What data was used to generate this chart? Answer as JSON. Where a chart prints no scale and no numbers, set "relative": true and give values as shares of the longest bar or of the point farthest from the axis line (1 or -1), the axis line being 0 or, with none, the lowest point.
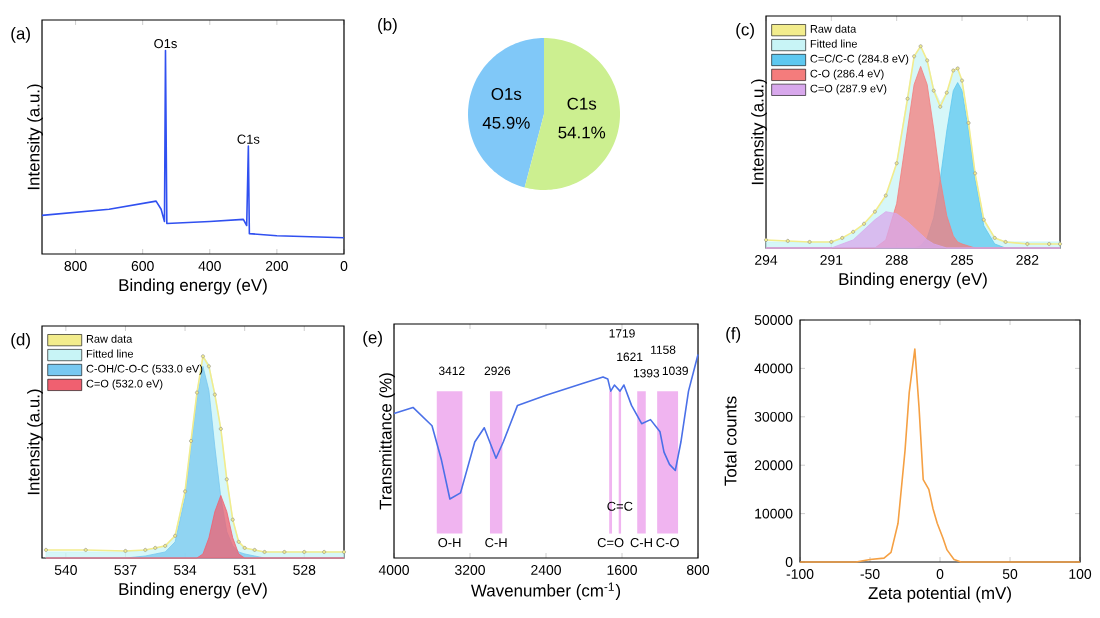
{
  "chart_data": [
    {
      "type": "line",
      "title": "(a)",
      "xlabel": "Binding energy (eV)",
      "ylabel": "Intensity (a.u.)",
      "relative": true,
      "xlim": [
        900,
        0
      ],
      "xticks": [
        800,
        600,
        400,
        200,
        0
      ],
      "color": "#3050f0",
      "x": [
        900,
        700,
        560,
        545,
        535,
        532,
        528,
        400,
        300,
        290,
        285,
        282,
        200,
        0
      ],
      "values": [
        0.19,
        0.22,
        0.26,
        0.22,
        0.16,
        1,
        0.15,
        0.16,
        0.17,
        0.14,
        0.53,
        0.1,
        0.09,
        0.08
      ],
      "annotations": [
        {
          "text": "O1s",
          "x": 532,
          "y": 1
        },
        {
          "text": "C1s",
          "x": 285,
          "y": 0.53
        }
      ]
    },
    {
      "type": "pie",
      "title": "(b)",
      "categories": [
        "O1s",
        "C1s"
      ],
      "values": [
        45.9,
        54.1
      ],
      "colors": [
        "#80c8f8",
        "#ccef90"
      ],
      "value_labels": [
        "45.9%",
        "54.1%"
      ]
    },
    {
      "type": "area",
      "title": "(c)",
      "xlabel": "Binding energy (eV)",
      "ylabel": "Intensity (a.u.)",
      "relative": true,
      "xlim": [
        294,
        280.5
      ],
      "xticks": [
        294,
        291,
        288,
        285,
        282
      ],
      "legend": "top left",
      "x": [
        294,
        293,
        292,
        291,
        290.5,
        290,
        289.5,
        289,
        288.5,
        288,
        287.5,
        287.2,
        286.9,
        286.6,
        286.3,
        286,
        285.7,
        285.4,
        285.2,
        285,
        284.7,
        284.4,
        284,
        283.5,
        283,
        282,
        281,
        280.5
      ],
      "series": [
        {
          "name": "Raw data",
          "type": "line",
          "marker": "circle",
          "color": "#f2ec8c",
          "values": [
            0.04,
            0.035,
            0.03,
            0.03,
            0.05,
            0.08,
            0.12,
            0.18,
            0.26,
            0.42,
            0.74,
            0.95,
            1,
            0.93,
            0.78,
            0.7,
            0.77,
            0.88,
            0.89,
            0.83,
            0.62,
            0.37,
            0.14,
            0.05,
            0.03,
            0.02,
            0.02,
            0.02
          ]
        },
        {
          "name": "Fitted line",
          "color": "#c8f4f6",
          "values": [
            0.03,
            0.03,
            0.03,
            0.03,
            0.05,
            0.07,
            0.12,
            0.17,
            0.25,
            0.42,
            0.75,
            0.94,
            1,
            0.93,
            0.79,
            0.72,
            0.77,
            0.87,
            0.88,
            0.83,
            0.62,
            0.37,
            0.14,
            0.05,
            0.03,
            0.03,
            0.03,
            0.03
          ]
        },
        {
          "name": "C=C/C-C (284.8 eV)",
          "color": "#5ec8f0",
          "values": [
            0,
            0,
            0,
            0,
            0,
            0,
            0,
            0,
            0,
            0,
            0,
            0,
            0.01,
            0.05,
            0.15,
            0.34,
            0.58,
            0.78,
            0.82,
            0.78,
            0.58,
            0.34,
            0.11,
            0.02,
            0,
            0,
            0,
            0
          ]
        },
        {
          "name": "C-O (286.4 eV)",
          "color": "#f47c7c",
          "values": [
            0,
            0,
            0,
            0,
            0,
            0,
            0,
            0,
            0.04,
            0.22,
            0.59,
            0.81,
            0.9,
            0.81,
            0.59,
            0.34,
            0.16,
            0.06,
            0.03,
            0.02,
            0.01,
            0,
            0,
            0,
            0,
            0,
            0,
            0
          ]
        },
        {
          "name": "C=O (287.9 eV)",
          "color": "#d8a8ec",
          "values": [
            0,
            0,
            0,
            0,
            0.02,
            0.04,
            0.09,
            0.14,
            0.18,
            0.17,
            0.13,
            0.1,
            0.07,
            0.04,
            0.02,
            0.01,
            0,
            0,
            0,
            0,
            0,
            0,
            0,
            0,
            0,
            0,
            0,
            0
          ]
        }
      ]
    },
    {
      "type": "area",
      "title": "(d)",
      "xlabel": "Binding energy (eV)",
      "ylabel": "Intensity (a.u.)",
      "relative": true,
      "xlim": [
        541.2,
        526
      ],
      "xticks": [
        540,
        537,
        534,
        531,
        528
      ],
      "legend": "top left",
      "x": [
        541,
        539,
        537,
        536,
        535.5,
        535,
        534.5,
        534,
        533.7,
        533.4,
        533.1,
        532.8,
        532.5,
        532.2,
        531.9,
        531.6,
        531.3,
        531,
        530.5,
        530,
        529,
        528,
        527,
        526
      ],
      "series": [
        {
          "name": "Raw data",
          "type": "line",
          "marker": "circle",
          "color": "#f2ec8c",
          "values": [
            0.04,
            0.04,
            0.035,
            0.04,
            0.05,
            0.06,
            0.11,
            0.33,
            0.58,
            0.82,
            1,
            0.95,
            0.81,
            0.64,
            0.39,
            0.19,
            0.08,
            0.05,
            0.04,
            0.03,
            0.03,
            0.03,
            0.03,
            0.03
          ]
        },
        {
          "name": "Fitted line",
          "color": "#c8f4f6",
          "values": [
            0.03,
            0.03,
            0.03,
            0.04,
            0.05,
            0.06,
            0.11,
            0.33,
            0.58,
            0.82,
            1,
            0.96,
            0.81,
            0.64,
            0.39,
            0.19,
            0.08,
            0.05,
            0.04,
            0.03,
            0.03,
            0.03,
            0.03,
            0.03
          ]
        },
        {
          "name": "C-OH/C-O-C (533.0 eV)",
          "color": "#78c8f0",
          "values": [
            0,
            0,
            0,
            0.01,
            0.02,
            0.03,
            0.08,
            0.3,
            0.55,
            0.79,
            0.95,
            0.83,
            0.55,
            0.3,
            0.13,
            0.06,
            0.03,
            0.02,
            0.01,
            0,
            0,
            0,
            0,
            0
          ]
        },
        {
          "name": "C=O (532.0 eV)",
          "color": "#f06070",
          "values": [
            0,
            0,
            0,
            0,
            0,
            0,
            0,
            0,
            0,
            0,
            0.02,
            0.1,
            0.23,
            0.31,
            0.23,
            0.1,
            0.02,
            0,
            0,
            0,
            0,
            0,
            0,
            0
          ]
        }
      ]
    },
    {
      "type": "line",
      "title": "(e)",
      "xlabel": "Wavenumber (cm$^{-1}$)",
      "ylabel": "Transmittance (%)",
      "relative": true,
      "xlim": [
        4000,
        800
      ],
      "xticks": [
        4000,
        3200,
        2400,
        1600,
        800
      ],
      "color": "#4a70e8",
      "x": [
        4000,
        3800,
        3600,
        3500,
        3412,
        3300,
        3150,
        3050,
        2926,
        2850,
        2700,
        2400,
        2000,
        1800,
        1750,
        1719,
        1680,
        1621,
        1580,
        1500,
        1393,
        1300,
        1200,
        1158,
        1100,
        1039,
        980,
        900,
        850,
        800
      ],
      "values": [
        0.71,
        0.74,
        0.65,
        0.48,
        0.29,
        0.32,
        0.57,
        0.64,
        0.49,
        0.57,
        0.75,
        0.8,
        0.86,
        0.89,
        0.88,
        0.82,
        0.85,
        0.82,
        0.85,
        0.75,
        0.66,
        0.68,
        0.62,
        0.52,
        0.46,
        0.43,
        0.57,
        0.82,
        0.91,
        1
      ],
      "bands": [
        {
          "axis": "x",
          "from": 3550,
          "to": 3280,
          "color": "#f0b4f0",
          "label": "O-H"
        },
        {
          "axis": "x",
          "from": 2990,
          "to": 2860,
          "color": "#f0b4f0",
          "label": "C-H"
        },
        {
          "axis": "x",
          "from": 1735,
          "to": 1705,
          "color": "#f0b4f0",
          "label": "C=O"
        },
        {
          "axis": "x",
          "from": 1635,
          "to": 1610,
          "color": "#f0b4f0",
          "label": "C=C"
        },
        {
          "axis": "x",
          "from": 1440,
          "to": 1350,
          "color": "#f0b4f0",
          "label": "C-H"
        },
        {
          "axis": "x",
          "from": 1230,
          "to": 1010,
          "color": "#f0b4f0",
          "label": "C-O"
        }
      ],
      "annotations": [
        "3412",
        "2926",
        "1719",
        "1621",
        "1393",
        "1158",
        "1039"
      ]
    },
    {
      "type": "line",
      "title": "(f)",
      "xlabel": "Zeta potential (mV)",
      "ylabel": "Total counts",
      "xlim": [
        -100,
        100
      ],
      "xticks": [
        -100,
        -50,
        0,
        50,
        100
      ],
      "ylim": [
        0,
        50000
      ],
      "yticks": [
        0,
        10000,
        20000,
        30000,
        40000,
        50000
      ],
      "color": "#f5a043",
      "x": [
        -100,
        -60,
        -50,
        -40,
        -35,
        -30,
        -25,
        -22,
        -18,
        -15,
        -12,
        -8,
        -5,
        -2,
        2,
        5,
        10,
        15,
        100
      ],
      "values": [
        0,
        0,
        500,
        800,
        2000,
        8000,
        23000,
        35000,
        44000,
        32000,
        17000,
        15000,
        11000,
        8000,
        5000,
        2500,
        500,
        0,
        0
      ]
    }
  ]
}
